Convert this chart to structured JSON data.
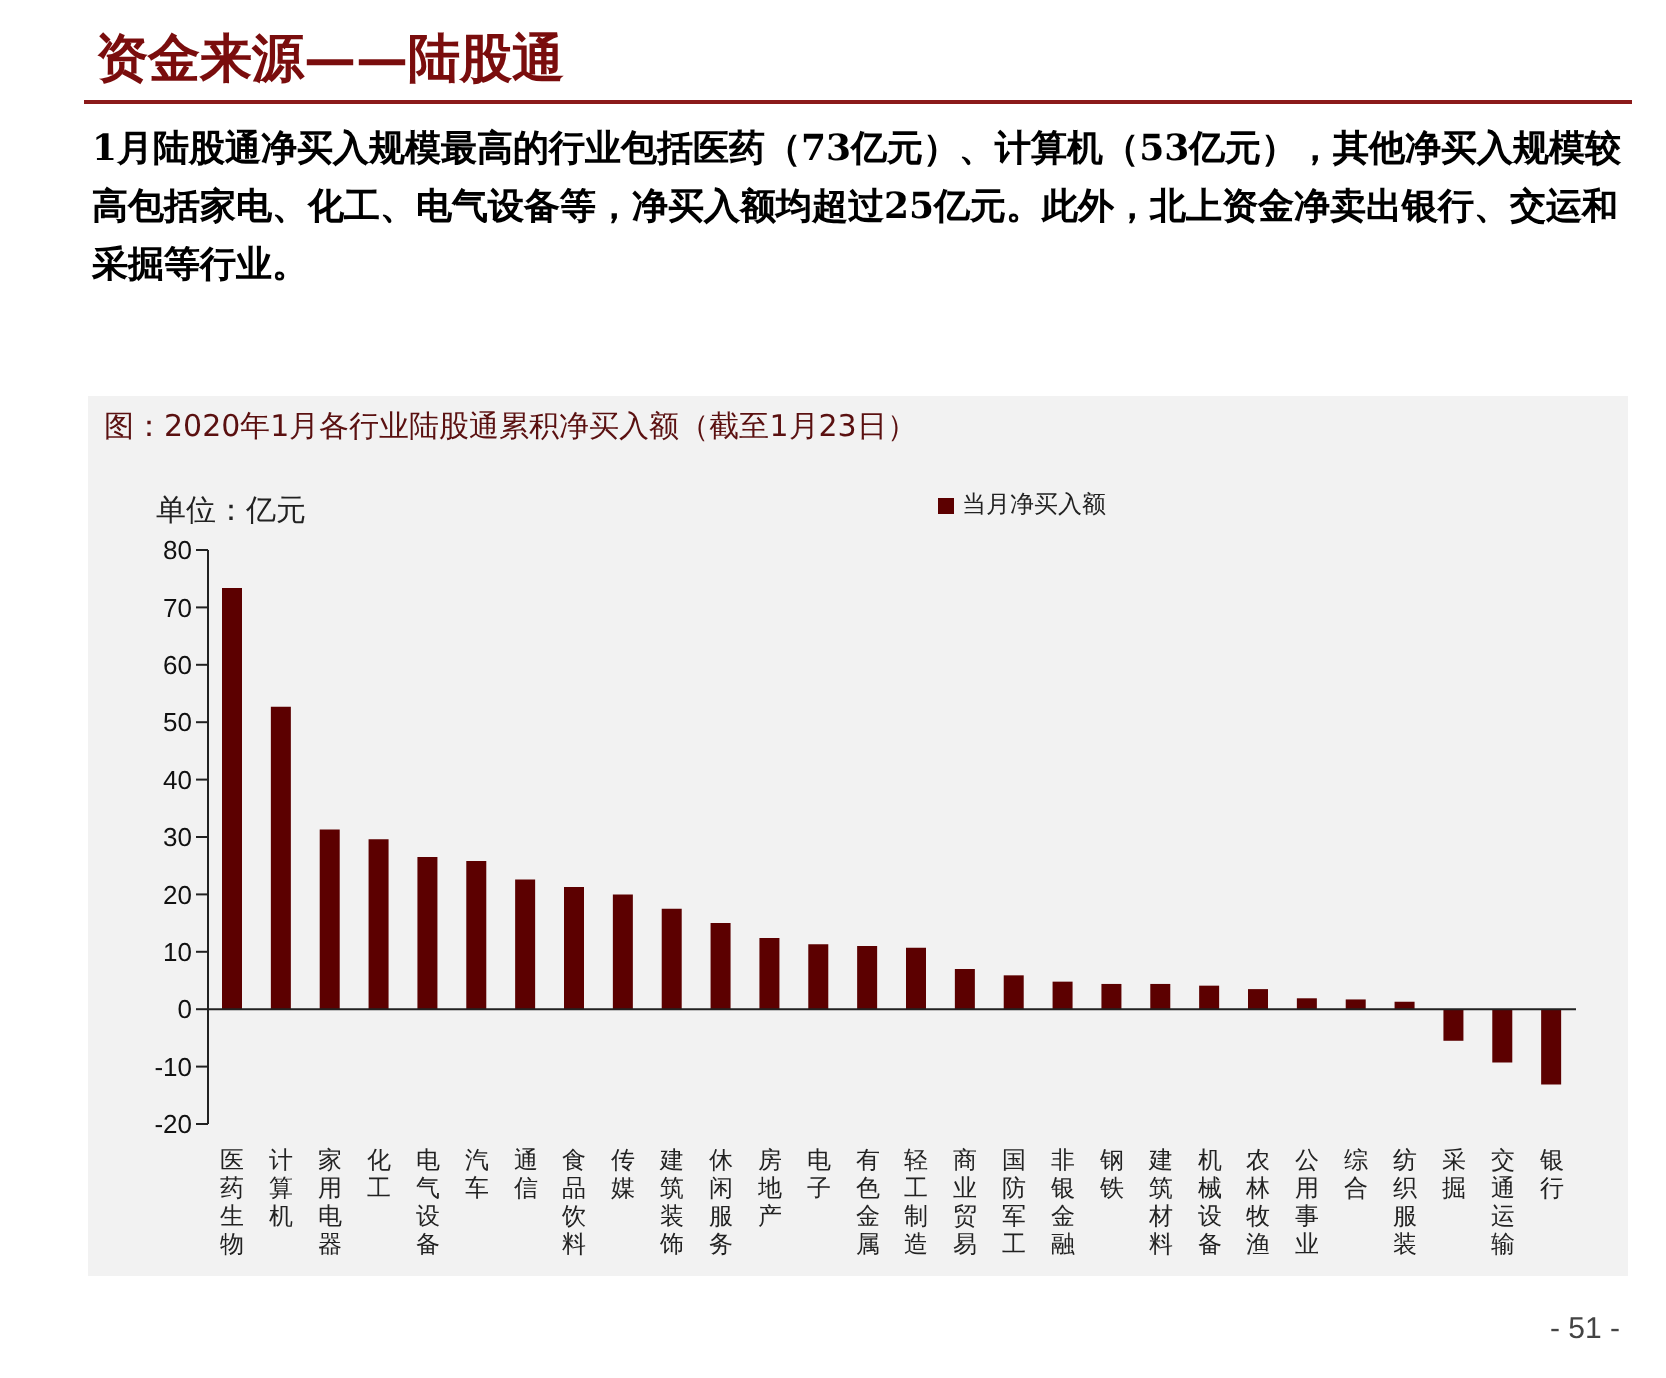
{
  "chart_data": {
    "type": "bar",
    "title": "资金来源——陆股通",
    "subtitle": "图：2020年1月各行业陆股通累积净买入额（截至1月23日）",
    "ylabel": "单位：亿元",
    "annotations": [
      "1月陆股通净买入规模最高的行业包括医药（73亿元）、计算机（53亿元），其他净买入规模较高包括家电、化工、电气设备等，净买入额均超过25亿元。此外，北上资金净卖出银行、交运和采掘等行业。",
      "- 51 -"
    ],
    "categories": [
      "医药生物",
      "计算机",
      "家用电器",
      "化工",
      "电气设备",
      "汽车",
      "通信",
      "食品饮料",
      "传媒",
      "建筑装饰",
      "休闲服务",
      "房地产",
      "电子",
      "有色金属",
      "轻工制造",
      "商业贸易",
      "国防军工",
      "非银金融",
      "钢铁",
      "建筑材料",
      "机械设备",
      "农林牧渔",
      "公用事业",
      "综合",
      "纺织服装",
      "采掘",
      "交通运输",
      "银行"
    ],
    "series": [
      {
        "name": "当月净买入额",
        "color": "#5c0000",
        "values": [
          73.4,
          52.7,
          31.3,
          29.6,
          26.5,
          25.8,
          22.6,
          21.3,
          20.0,
          17.5,
          15.0,
          12.4,
          11.3,
          11.0,
          10.7,
          7.0,
          5.9,
          4.8,
          4.4,
          4.4,
          4.1,
          3.5,
          1.9,
          1.7,
          1.3,
          -5.5,
          -9.3,
          -13.1
        ]
      }
    ],
    "ylim": [
      -20,
      80
    ],
    "yticks": [
      -20,
      -10,
      0,
      10,
      20,
      30,
      40,
      50,
      60,
      70,
      80
    ],
    "legend": "top"
  }
}
